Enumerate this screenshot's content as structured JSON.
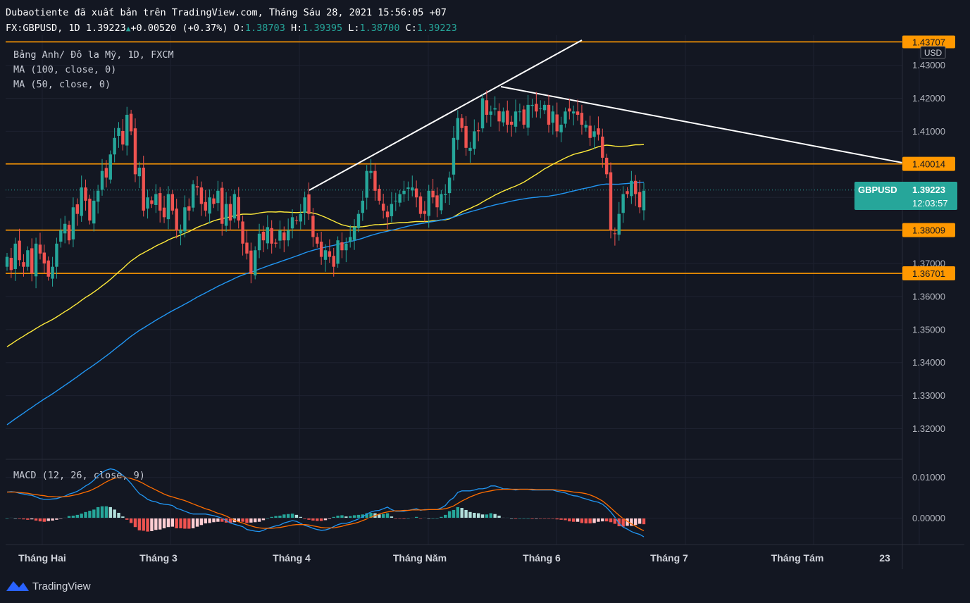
{
  "header": {
    "publish_line": "Dubaotiente đã xuất bản trên TradingView.com, Tháng Sáu 28, 2021 15:56:05 +07",
    "symbol": "FX:GBPUSD, 1D",
    "last": "1.39223",
    "change": "+0.00520 (+0.37%)",
    "o_label": "O:",
    "o": "1.38703",
    "h_label": "H:",
    "h": "1.39395",
    "l_label": "L:",
    "l": "1.38700",
    "c_label": "C:",
    "c": "1.39223"
  },
  "legend": {
    "title": "Bảng Anh/ Đô la Mỹ, 1D, FXCM",
    "ma100": "MA (100, close, 0)",
    "ma50": "MA (50, close, 0)",
    "macd": "MACD (12, 26, close, 9)"
  },
  "price_axis": {
    "currency": "USD",
    "top_cut_label": "1.43707",
    "ticks": [
      "1.43000",
      "1.42000",
      "1.41000",
      "1.40000",
      "1.39000",
      "1.38000",
      "1.37000",
      "1.36000",
      "1.35000",
      "1.34000",
      "1.33000",
      "1.32000"
    ],
    "levels": [
      "1.40014",
      "1.38009",
      "1.36701"
    ],
    "current_symbol": "GBPUSD",
    "current_price": "1.39223",
    "countdown": "12:03:57"
  },
  "macd_axis": {
    "ticks": [
      "0.01000",
      "0.00000"
    ]
  },
  "time_axis": {
    "labels": [
      "Tháng Hai",
      "Tháng 3",
      "Tháng 4",
      "Tháng Năm",
      "Tháng 6",
      "Tháng 7",
      "Tháng Tám",
      "23"
    ]
  },
  "colors": {
    "background": "#131722",
    "up": "#26a69a",
    "down": "#ef5350",
    "level": "#ff9800",
    "ma50": "#ffeb3b",
    "ma100": "#2196f3",
    "trendline": "#ffffff",
    "grid": "#1e2230"
  },
  "brand": {
    "name": "TradingView"
  },
  "chart_data": {
    "type": "candlestick",
    "symbol": "GBPUSD",
    "timeframe": "1D",
    "y_range": [
      1.312,
      1.44
    ],
    "x_axis": [
      "Tháng Hai",
      "Tháng 3",
      "Tháng 4",
      "Tháng Năm",
      "Tháng 6",
      "Tháng 7",
      "Tháng Tám",
      "23"
    ],
    "closes": [
      1.372,
      1.368,
      1.376,
      1.371,
      1.369,
      1.374,
      1.367,
      1.376,
      1.373,
      1.37,
      1.366,
      1.369,
      1.376,
      1.38,
      1.382,
      1.377,
      1.387,
      1.385,
      1.393,
      1.389,
      1.383,
      1.389,
      1.392,
      1.398,
      1.396,
      1.403,
      1.408,
      1.411,
      1.406,
      1.415,
      1.41,
      1.397,
      1.399,
      1.386,
      1.39,
      1.388,
      1.391,
      1.386,
      1.384,
      1.391,
      1.386,
      1.38,
      1.38,
      1.387,
      1.386,
      1.394,
      1.393,
      1.388,
      1.386,
      1.39,
      1.388,
      1.392,
      1.382,
      1.388,
      1.383,
      1.391,
      1.383,
      1.376,
      1.373,
      1.367,
      1.374,
      1.379,
      1.377,
      1.381,
      1.376,
      1.376,
      1.38,
      1.377,
      1.38,
      1.384,
      1.383,
      1.385,
      1.39,
      1.385,
      1.378,
      1.376,
      1.372,
      1.374,
      1.372,
      1.369,
      1.377,
      1.374,
      1.376,
      1.378,
      1.381,
      1.385,
      1.389,
      1.398,
      1.398,
      1.392,
      1.389,
      1.386,
      1.384,
      1.388,
      1.389,
      1.391,
      1.392,
      1.393,
      1.393,
      1.39,
      1.385,
      1.385,
      1.392,
      1.39,
      1.387,
      1.391,
      1.391,
      1.396,
      1.408,
      1.414,
      1.411,
      1.405,
      1.405,
      1.41,
      1.41,
      1.42,
      1.415,
      1.416,
      1.417,
      1.413,
      1.416,
      1.412,
      1.412,
      1.416,
      1.416,
      1.412,
      1.418,
      1.418,
      1.416,
      1.417,
      1.418,
      1.412,
      1.416,
      1.41,
      1.412,
      1.416,
      1.416,
      1.416,
      1.415,
      1.412,
      1.412,
      1.408,
      1.41,
      1.409,
      1.402,
      1.397,
      1.38,
      1.379,
      1.385,
      1.391,
      1.391,
      1.395,
      1.391,
      1.387,
      1.392
    ],
    "horizontal_levels": [
      1.43707,
      1.40014,
      1.38009,
      1.36701
    ],
    "series": [
      {
        "name": "MA (50, close, 0)",
        "values_start": 1.3448,
        "values_end": 1.4028
      },
      {
        "name": "MA (100, close, 0)",
        "values_start": 1.3212,
        "values_end": 1.3938
      }
    ],
    "macd": {
      "name": "MACD (12, 26, close, 9)",
      "y_range": [
        -0.0069,
        0.0133
      ],
      "macd_values": [
        0.0064,
        0.0065,
        0.0064,
        0.0061,
        0.0059,
        0.0057,
        0.0056,
        0.0052,
        0.0048,
        0.0046,
        0.0046,
        0.0047,
        0.0048,
        0.0051,
        0.0054,
        0.0059,
        0.0062,
        0.0066,
        0.0072,
        0.0079,
        0.0085,
        0.0093,
        0.0104,
        0.0112,
        0.0118,
        0.0121,
        0.0119,
        0.0113,
        0.0105,
        0.0096,
        0.0085,
        0.0072,
        0.006,
        0.0054,
        0.0046,
        0.0042,
        0.004,
        0.0036,
        0.0034,
        0.0033,
        0.0031,
        0.0024,
        0.0021,
        0.0017,
        0.0013,
        0.001,
        0.001,
        0.001,
        0.001,
        0.0008,
        0.0006,
        0.0003,
        0.0,
        -0.0006,
        -0.0012,
        -0.0015,
        -0.0018,
        -0.0021,
        -0.0028,
        -0.003,
        -0.0032,
        -0.0033,
        -0.003,
        -0.0025,
        -0.0022,
        -0.0019,
        -0.0017,
        -0.0012,
        -0.0009,
        -0.0006,
        -0.0008,
        -0.0013,
        -0.0018,
        -0.0021,
        -0.0025,
        -0.0028,
        -0.003,
        -0.0029,
        -0.0026,
        -0.0021,
        -0.0016,
        -0.0013,
        -0.0013,
        -0.001,
        -0.0006,
        -0.0002,
        0.0003,
        0.001,
        0.0015,
        0.0018,
        0.0019,
        0.0023,
        0.0027,
        0.0021,
        0.0017,
        0.0017,
        0.0017,
        0.0019,
        0.0021,
        0.0023,
        0.0019,
        0.0021,
        0.0021,
        0.0021,
        0.0021,
        0.0025,
        0.0031,
        0.0043,
        0.005,
        0.0063,
        0.0067,
        0.0067,
        0.0067,
        0.0069,
        0.0072,
        0.0072,
        0.0074,
        0.0079,
        0.0079,
        0.0076,
        0.0072,
        0.0072,
        0.0071,
        0.0069,
        0.0071,
        0.0071,
        0.0071,
        0.0069,
        0.0069,
        0.0069,
        0.0069,
        0.0069,
        0.0069,
        0.0066,
        0.0064,
        0.0062,
        0.0058,
        0.0055,
        0.0054,
        0.005,
        0.0047,
        0.0044,
        0.0041,
        0.0039,
        0.0034,
        0.0026,
        0.0015,
        0.0002,
        -0.0013,
        -0.0022,
        -0.0027,
        -0.0033,
        -0.0037,
        -0.004,
        -0.0046,
        -0.0051,
        -0.0052
      ],
      "signal_values": [
        0.0064,
        0.0064,
        0.0064,
        0.0063,
        0.0062,
        0.0061,
        0.0059,
        0.0058,
        0.0056,
        0.0055,
        0.0053,
        0.0053,
        0.0052,
        0.0052,
        0.0053,
        0.0054,
        0.0056,
        0.0058,
        0.0061,
        0.0064,
        0.0067,
        0.0072,
        0.0077,
        0.0083,
        0.0089,
        0.0094,
        0.0098,
        0.01,
        0.0101,
        0.01,
        0.0097,
        0.0094,
        0.009,
        0.0085,
        0.0079,
        0.0074,
        0.0069,
        0.0064,
        0.0059,
        0.0055,
        0.0052,
        0.0049,
        0.0046,
        0.0043,
        0.0039,
        0.0035,
        0.0031,
        0.0027,
        0.0023,
        0.002,
        0.0016,
        0.0012,
        0.0009,
        0.0005,
        0.0,
        -0.0005,
        -0.0009,
        -0.0012,
        -0.0016,
        -0.0019,
        -0.0022,
        -0.0024,
        -0.0025,
        -0.0025,
        -0.0025,
        -0.0024,
        -0.0023,
        -0.0021,
        -0.0019,
        -0.0017,
        -0.0016,
        -0.0016,
        -0.0016,
        -0.0017,
        -0.0019,
        -0.0021,
        -0.0023,
        -0.0024,
        -0.0024,
        -0.0024,
        -0.0022,
        -0.002,
        -0.0017,
        -0.0015,
        -0.0013,
        -0.001,
        -0.0006,
        -0.0002,
        0.0002,
        0.0006,
        0.001,
        0.0013,
        0.0015,
        0.0017,
        0.0018,
        0.0018,
        0.0019,
        0.0019,
        0.002,
        0.002,
        0.002,
        0.002,
        0.0021,
        0.0021,
        0.0021,
        0.0022,
        0.0023,
        0.0026,
        0.003,
        0.0036,
        0.0042,
        0.0047,
        0.0052,
        0.0056,
        0.006,
        0.0063,
        0.0065,
        0.0067,
        0.0069,
        0.007,
        0.0071,
        0.0071,
        0.0071,
        0.0071,
        0.0071,
        0.0071,
        0.0071,
        0.0071,
        0.007,
        0.007,
        0.007,
        0.007,
        0.007,
        0.0069,
        0.0068,
        0.0067,
        0.0066,
        0.0064,
        0.0063,
        0.0062,
        0.006,
        0.0057,
        0.0053,
        0.0048,
        0.0042,
        0.0034,
        0.0025,
        0.0016,
        0.0007,
        -0.0001,
        -0.0008,
        -0.0014,
        -0.002,
        -0.0026,
        -0.0031
      ]
    }
  }
}
